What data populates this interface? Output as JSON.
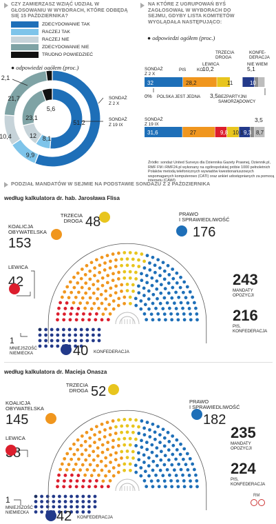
{
  "q1": {
    "title": "CZY ZAMIERZASZ WZIĄĆ UDZIAŁ W GŁOSOWANIU W WYBORACH, KTÓRE ODBĘDĄ SIĘ 15 PAŹDZIERNIKA?",
    "legend": [
      {
        "label": "ZDECYDOWANIE TAK",
        "color": "#1e6fb8"
      },
      {
        "label": "RACZEJ TAK",
        "color": "#7ec4ea"
      },
      {
        "label": "RACZEJ NIE",
        "color": "#c6d3d9"
      },
      {
        "label": "ZDECYDOWANIE NIE",
        "color": "#7fa3a5"
      },
      {
        "label": "TRUDNO POWIEDZIEĆ",
        "color": "#111111"
      }
    ],
    "note": "odpowiedzi ogółem (proc.)",
    "outer_label": "SONDAŻ Z 2 X",
    "inner_label": "SONDAŻ Z 19 IX"
  },
  "q2": {
    "title": "NA KTÓRE Z UGRUPOWAŃ BYŚ ZAGŁOSOWAŁ W WYBORACH DO SEJMU, GDYBY LISTA KOMITETÓW WYGLĄDAŁA NASTĘPUJĄCO:",
    "note": "odpowiedzi ogółem (proc.)",
    "labels": {
      "pis": "PIS",
      "ko": "KO",
      "td": "TRZECIA DROGA",
      "lewica": "LEWICA",
      "konf": "KONFE-DERACJA",
      "niewiem": "NIE WIEM",
      "psj": "POLSKA JEST JEDNA",
      "bs": "BEZPARTYJNI SAMORZĄDOWCY",
      "row1": "SONDAŻ Z 2 X",
      "row2": "SONDAŻ Z 19 IX"
    },
    "extra": {
      "psj": "0%",
      "bs": "3,5",
      "td_top": "10,2",
      "nw_top": "5,1",
      "td_bot": "3,5"
    },
    "source": "Źródło: sondaż United Surveys dla Dziennika Gazety Prawnej, Dziennik.pl, RMF FM i RMF24.pl wykonany na ogólnopolskiej próbie 1000 pełnoletnich Polaków metodą telefonicznych wywiadów kwestionariuszowych wspomaganych komputerowo (CATI) oraz ankiet udostępnianych za pomocą internetu (CAWI)"
  },
  "section": {
    "title": "PODZIAŁ MANDATÓW W SEJMIE NA PODSTAWIE SONDAŻU Z 2 PAŹDZIERNIKA"
  },
  "parl1": {
    "title": "według kalkulatora dr. hab. Jarosława Flisa",
    "koalicja_label": "KOALICJA OBYWATELSKA",
    "td_label": "TRZECIA DROGA",
    "pis_label": "PRAWO I SPRAWIEDLIWOŚĆ",
    "lewica_label": "LEWICA",
    "mn_label": "MNIEJSZOŚĆ NIEMIECKA",
    "konf_label": "KONFEDERACJA",
    "opp_total": "243",
    "opp_label": "MANDATY OPOZYCJI",
    "rule_total": "216",
    "rule_label": "PIS, KONFEDERACJA"
  },
  "parl2": {
    "title": "według kalkulatora dr. Macieja Onasza",
    "koalicja_label": "KOALICJA OBYWATELSKA",
    "td_label": "TRZECIA DROGA",
    "pis_label": "PRAWO I SPRAWIEDLIWOŚĆ",
    "lewica_label": "LEWICA",
    "mn_label": "MNIEJSZOŚĆ NIEMIECKA",
    "konf_label": "KONFEDERACJA",
    "opp_total": "235",
    "opp_label": "MANDATY OPOZYCJI",
    "rule_total": "224",
    "rule_label": "PIS, KONFEDERACJA"
  },
  "credit": "RM",
  "colors": {
    "ko": "#f0961e",
    "pis": "#1e6fb8",
    "lewica": "#dc1e2d",
    "td": "#e8c51e",
    "konf": "#233a8a",
    "mn": "#1e3060",
    "bs": "#8a8a8a",
    "nw": "#bdbdbd",
    "psj": "#f0961e"
  },
  "chart_data": [
    {
      "type": "pie",
      "title": "CZY ZAMIERZASZ WZIĄĆ UDZIAŁ W GŁOSOWANIU W WYBORACH, KTÓRE ODBĘDĄ SIĘ 15 PAŹDZIERNIKA?",
      "series": [
        {
          "name": "SONDAŻ Z 2 X",
          "categories": [
            "ZDECYDOWANIE TAK",
            "RACZEJ TAK",
            "RACZEJ NIE",
            "ZDECYDOWANIE NIE",
            "TRUDNO POWIEDZIEĆ"
          ],
          "values": [
            55.9,
            9.9,
            10.4,
            21.7,
            2.1
          ]
        },
        {
          "name": "SONDAŻ Z 19 IX",
          "categories": [
            "ZDECYDOWANIE TAK",
            "RACZEJ TAK",
            "RACZEJ NIE",
            "ZDECYDOWANIE NIE",
            "TRUDNO POWIEDZIEĆ"
          ],
          "values": [
            51.2,
            8.1,
            12.0,
            23.1,
            5.6
          ]
        }
      ]
    },
    {
      "type": "bar",
      "title": "NA KTÓRE Z UGRUPOWAŃ BYŚ ZAGŁOSOWAŁ W WYBORACH DO SEJMU, GDYBY LISTA KOMITETÓW WYGLĄDAŁA NASTĘPUJĄCO:",
      "categories": [
        "PIS",
        "KO",
        "TRZECIA DROGA",
        "LEWICA",
        "KONFEDERACJA",
        "BEZPARTYJNI SAMORZĄDOWCY",
        "NIE WIEM"
      ],
      "series": [
        {
          "name": "SONDAŻ Z 2 X",
          "values": [
            32,
            28.2,
            10.2,
            11,
            10,
            3.5,
            5.1
          ]
        },
        {
          "name": "SONDAŻ Z 19 IX",
          "values": [
            31.6,
            27,
            10.1,
            9.8,
            9.3,
            3.5,
            8.7
          ]
        }
      ]
    },
    {
      "type": "bar",
      "title": "według kalkulatora dr. hab. Jarosława Flisa",
      "categories": [
        "KOALICJA OBYWATELSKA",
        "TRZECIA DROGA",
        "PRAWO I SPRAWIEDLIWOŚĆ",
        "LEWICA",
        "MNIEJSZOŚĆ NIEMIECKA",
        "KONFEDERACJA"
      ],
      "values": [
        153,
        48,
        176,
        42,
        1,
        40
      ]
    },
    {
      "type": "bar",
      "title": "według kalkulatora dr. Macieja Onasza",
      "categories": [
        "KOALICJA OBYWATELSKA",
        "TRZECIA DROGA",
        "PRAWO I SPRAWIEDLIWOŚĆ",
        "LEWICA",
        "MNIEJSZOŚĆ NIEMIECKA",
        "KONFEDERACJA"
      ],
      "values": [
        145,
        52,
        182,
        38,
        1,
        42
      ]
    }
  ]
}
